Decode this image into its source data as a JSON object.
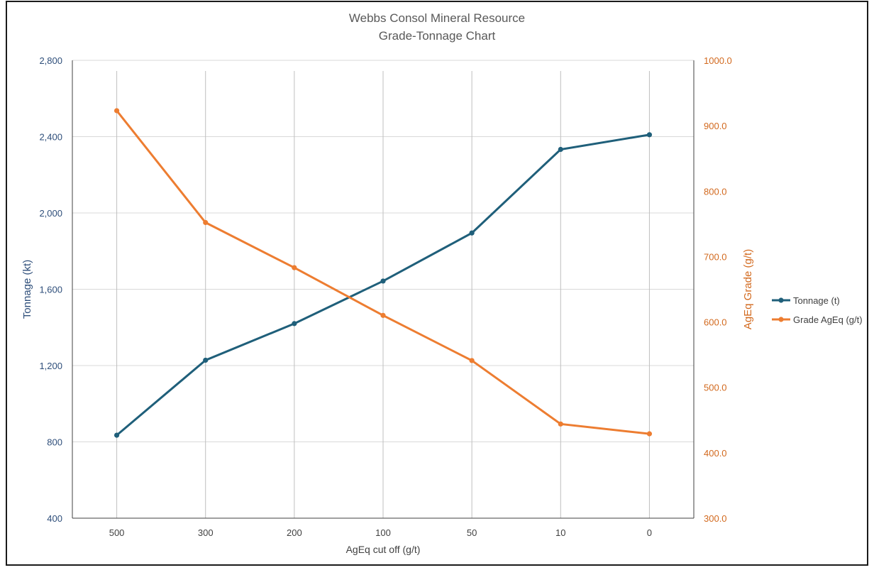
{
  "chart_data": {
    "type": "line",
    "title": "Webbs Consol Mineral Resource",
    "subtitle": "Grade-Tonnage  Chart",
    "xlabel": "AgEq cut off (g/t)",
    "ylabel_left": "Tonnage (kt)",
    "ylabel_right": "AgEq Grade (g/t)",
    "categories": [
      "500",
      "300",
      "200",
      "100",
      "50",
      "10",
      "0"
    ],
    "ylim_left": [
      400,
      2800
    ],
    "ylim_right": [
      300.0,
      1000.0
    ],
    "yticks_left": [
      "400",
      "800",
      "1,200",
      "1,600",
      "2,000",
      "2,400",
      "2,800"
    ],
    "yticks_right": [
      "300.0",
      "400.0",
      "500.0",
      "600.0",
      "700.0",
      "800.0",
      "900.0",
      "1000.0"
    ],
    "grid": true,
    "legend_position": "right",
    "series": [
      {
        "name": "Tonnage (t)",
        "axis": "left",
        "color": "#1f5f7a",
        "values": [
          835,
          1228,
          1420,
          1643,
          1895,
          2333,
          2410
        ]
      },
      {
        "name": "Grade AgEq (g/t)",
        "axis": "right",
        "color": "#ed7d31",
        "values": [
          923,
          752,
          683,
          610,
          541,
          444,
          429
        ]
      }
    ],
    "colors": {
      "left_axis": "#2e4e7a",
      "right_axis": "#d2691e",
      "grid": "#d9d9d9",
      "frame": "#1a1a1a"
    }
  }
}
